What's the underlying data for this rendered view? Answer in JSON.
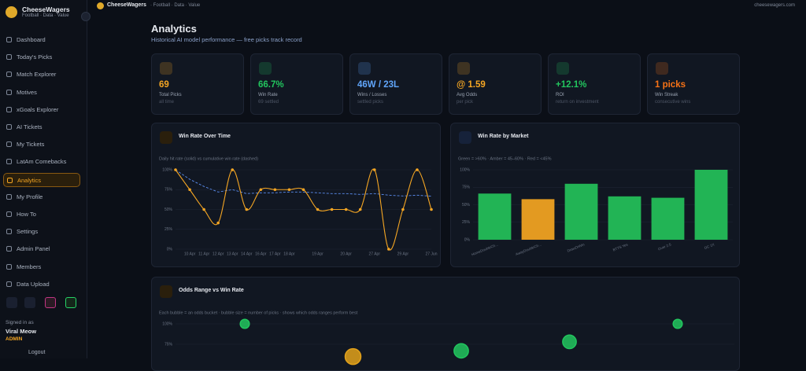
{
  "topbar": {
    "brand": "CheeseWagers",
    "tagline": "· Football · Data · Value",
    "site": "cheesewagers.com"
  },
  "sidebar": {
    "brand": "CheeseWagers",
    "tagline": "Football · Data · Value",
    "nav": [
      {
        "label": "Dashboard"
      },
      {
        "label": "Today's Picks"
      },
      {
        "label": "Match Explorer"
      },
      {
        "label": "Motives"
      },
      {
        "label": "xGoals Explorer"
      },
      {
        "label": "AI Tickets"
      },
      {
        "label": "My Tickets"
      },
      {
        "label": "LatAm Comebacks"
      },
      {
        "label": "Analytics",
        "active": true
      },
      {
        "label": "My Profile"
      },
      {
        "label": "How To"
      },
      {
        "label": "Settings"
      },
      {
        "label": "Admin Panel"
      },
      {
        "label": "Members"
      },
      {
        "label": "Data Upload"
      }
    ],
    "signed_in": {
      "caption": "Signed in as",
      "user": "Viral Meow",
      "role": "ADMIN",
      "logout": "Logout"
    }
  },
  "page": {
    "title": "Analytics",
    "subtitle": "Historical AI model performance — free picks track record"
  },
  "cards": [
    {
      "value": "69",
      "label": "Total Picks",
      "note": "all time",
      "color": "#f5a623"
    },
    {
      "value": "66.7%",
      "label": "Win Rate",
      "note": "69 settled",
      "color": "#22c55e"
    },
    {
      "value": "46W / 23L",
      "label": "Wins / Losses",
      "note": "settled picks",
      "color": "#60a5fa"
    },
    {
      "value": "@ 1.59",
      "label": "Avg Odds",
      "note": "per pick",
      "color": "#f5a623"
    },
    {
      "value": "+12.1%",
      "label": "ROI",
      "note": "return on investment",
      "color": "#22c55e"
    },
    {
      "value": "1 picks",
      "label": "Win Streak",
      "note": "consecutive wins",
      "color": "#f97316"
    }
  ],
  "win_rate_chart": {
    "type": "line",
    "title": "Win Rate Over Time",
    "subtitle": "Daily hit rate (solid) vs cumulative win rate (dashed)",
    "categories": [
      null,
      "10 Apr",
      "11 Apr",
      "12 Apr",
      "13 Apr",
      "14 Apr",
      "16 Apr",
      "17 Apr",
      "18 Apr",
      null,
      "19 Apr",
      null,
      "20 Apr",
      null,
      "27 Apr",
      null,
      "29 Apr",
      null,
      "27 Jun"
    ],
    "series": [
      {
        "name": "Daily hit rate",
        "color": "#f5a623",
        "dashed": false,
        "values": [
          100,
          75,
          50,
          33,
          100,
          50,
          75,
          75,
          75,
          75,
          50,
          50,
          50,
          50,
          100,
          0,
          50,
          100,
          50
        ]
      },
      {
        "name": "Cumulative win rate",
        "color": "#5b8def",
        "dashed": true,
        "values": [
          100,
          88,
          79,
          72,
          75,
          70,
          71,
          71,
          72,
          72,
          71,
          70,
          70,
          69,
          70,
          68,
          67,
          68,
          66.7
        ]
      }
    ],
    "ylim": [
      0,
      100
    ],
    "yticks": [
      {
        "value": 0,
        "label": "0%"
      },
      {
        "value": 25,
        "label": "25%"
      },
      {
        "value": 50,
        "label": "50%"
      },
      {
        "value": 75,
        "label": "75%"
      },
      {
        "value": 100,
        "label": "100%"
      }
    ],
    "grid": true
  },
  "market_chart": {
    "type": "bar",
    "title": "Win Rate by Market",
    "subtitle": "Green = >60% · Amber = 45–60% · Red = <45%",
    "categories": [
      "HomeDoubleCh...",
      "AwayDoubleCh...",
      "DrawOrWin",
      "BTTS Yes",
      "Over 2.5",
      "DC 1X"
    ],
    "values": [
      66,
      58,
      80,
      62,
      60,
      100
    ],
    "colors": [
      "#22b455",
      "#e39a21",
      "#22b455",
      "#22b455",
      "#22b455",
      "#22b455"
    ],
    "ylim": [
      0,
      100
    ],
    "yticks": [
      {
        "value": 0,
        "label": "0%"
      },
      {
        "value": 25,
        "label": "25%"
      },
      {
        "value": 50,
        "label": "50%"
      },
      {
        "value": 75,
        "label": "75%"
      },
      {
        "value": 100,
        "label": "100%"
      }
    ],
    "grid": true
  },
  "odds_chart": {
    "type": "bubble",
    "title": "Odds Range vs Win Rate",
    "subtitle": "Each bubble = an odds bucket · bubble size = number of picks · shows which odds ranges perform best",
    "values": [
      100,
      60,
      67,
      78,
      100
    ],
    "sizes": [
      1,
      8,
      6,
      5,
      1
    ],
    "colors": [
      "#22c55e",
      "#e3a21a",
      "#22c55e",
      "#22c55e",
      "#22c55e"
    ],
    "ylim": [
      0,
      100
    ],
    "yticks": [
      {
        "value": 75,
        "label": "75%"
      },
      {
        "value": 100,
        "label": "100%"
      }
    ],
    "grid": true
  }
}
